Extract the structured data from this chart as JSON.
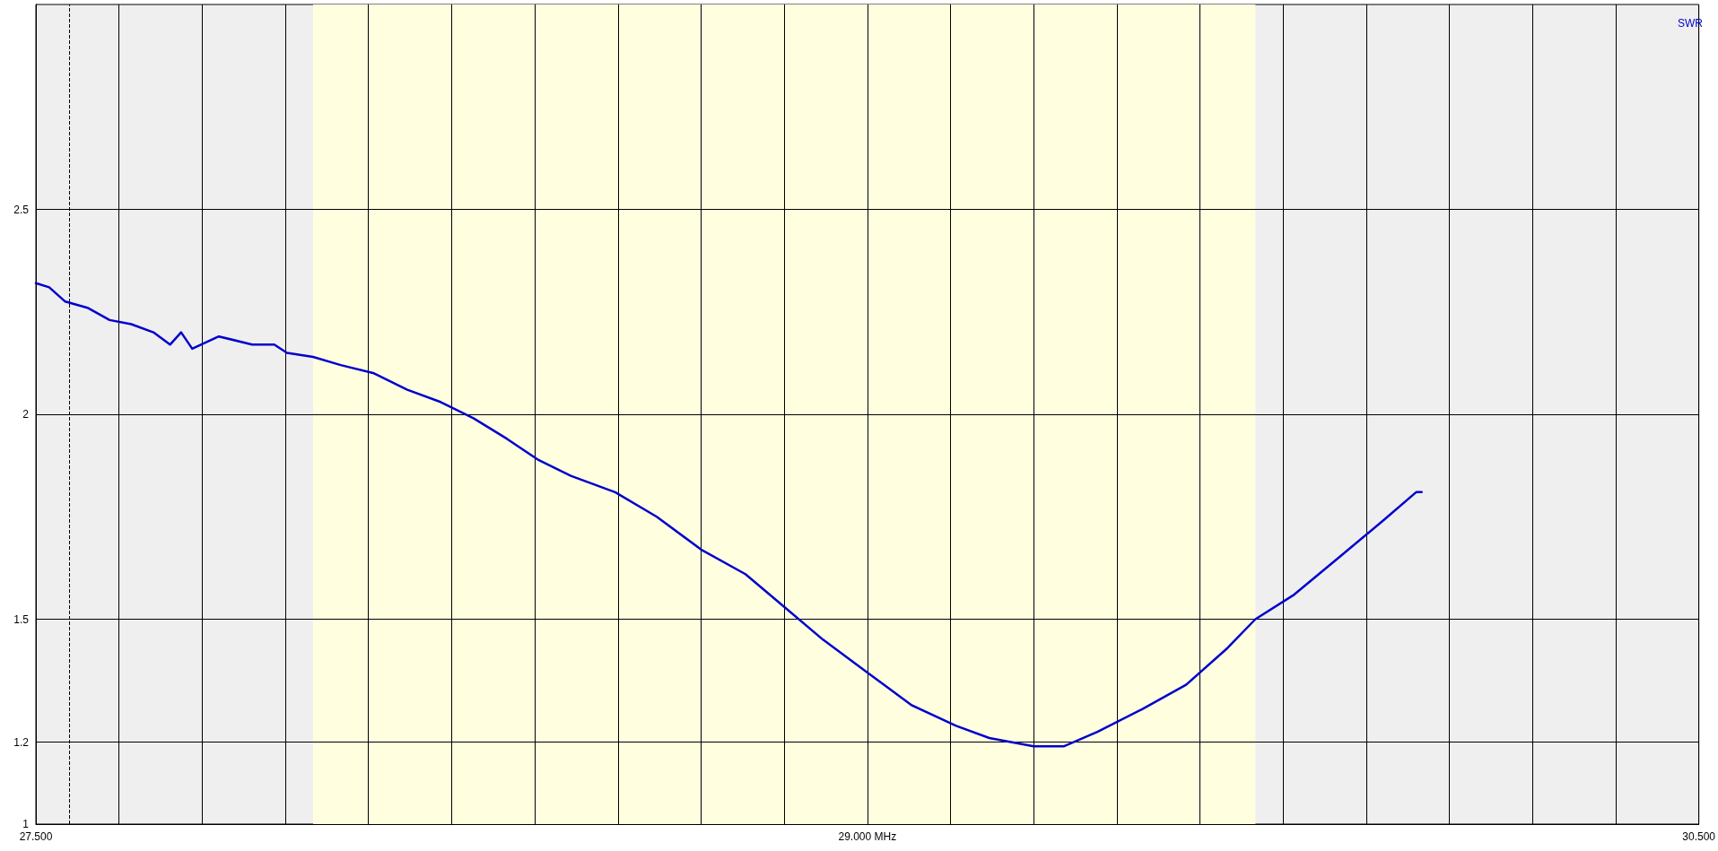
{
  "chart_data": {
    "type": "line",
    "xlim": [
      27.5,
      30.5
    ],
    "xticks": [
      {
        "value": 27.5,
        "label": "27.500"
      },
      {
        "value": 27.65,
        "label": null
      },
      {
        "value": 27.8,
        "label": null
      },
      {
        "value": 27.95,
        "label": null
      },
      {
        "value": 28.1,
        "label": null
      },
      {
        "value": 28.25,
        "label": null
      },
      {
        "value": 28.4,
        "label": null
      },
      {
        "value": 28.55,
        "label": null
      },
      {
        "value": 28.7,
        "label": null
      },
      {
        "value": 28.85,
        "label": null
      },
      {
        "value": 29.0,
        "label": "29.000 MHz"
      },
      {
        "value": 29.15,
        "label": null
      },
      {
        "value": 29.3,
        "label": null
      },
      {
        "value": 29.45,
        "label": null
      },
      {
        "value": 29.6,
        "label": null
      },
      {
        "value": 29.75,
        "label": null
      },
      {
        "value": 29.9,
        "label": null
      },
      {
        "value": 30.05,
        "label": null
      },
      {
        "value": 30.2,
        "label": null
      },
      {
        "value": 30.35,
        "label": null
      },
      {
        "value": 30.5,
        "label": "30.500"
      }
    ],
    "ylim": [
      1,
      3
    ],
    "yticks": [
      1,
      1.2,
      1.5,
      2,
      2.5
    ],
    "grid": true,
    "legend": "top right",
    "marker": "none",
    "line_style": "solid",
    "bands": [
      {
        "axis": "x",
        "from": 28.0,
        "to": 29.7,
        "color": "#ffffe0"
      }
    ],
    "ref_lines": [
      {
        "axis": "x",
        "value": 27.56,
        "line_style": "dashed",
        "color": "#000000"
      }
    ],
    "series": [
      {
        "name": "SWR",
        "color": "#0000cc",
        "x": [
          27.5,
          27.524,
          27.553,
          27.593,
          27.633,
          27.672,
          27.712,
          27.742,
          27.762,
          27.782,
          27.83,
          27.89,
          27.93,
          27.953,
          28.0,
          28.05,
          28.11,
          28.17,
          28.23,
          28.29,
          28.35,
          28.405,
          28.465,
          28.545,
          28.62,
          28.7,
          28.78,
          28.85,
          28.92,
          29.0,
          29.08,
          29.16,
          29.22,
          29.3,
          29.355,
          29.415,
          29.495,
          29.575,
          29.65,
          29.7,
          29.77,
          29.85,
          29.93,
          29.99,
          30.0
        ],
        "values": [
          2.32,
          2.31,
          2.275,
          2.26,
          2.23,
          2.22,
          2.2,
          2.17,
          2.2,
          2.16,
          2.19,
          2.17,
          2.17,
          2.15,
          2.14,
          2.12,
          2.1,
          2.06,
          2.03,
          1.99,
          1.94,
          1.89,
          1.85,
          1.81,
          1.75,
          1.67,
          1.61,
          1.53,
          1.45,
          1.37,
          1.29,
          1.24,
          1.21,
          1.19,
          1.19,
          1.225,
          1.28,
          1.34,
          1.43,
          1.5,
          1.56,
          1.65,
          1.74,
          1.81,
          1.81
        ]
      }
    ]
  }
}
